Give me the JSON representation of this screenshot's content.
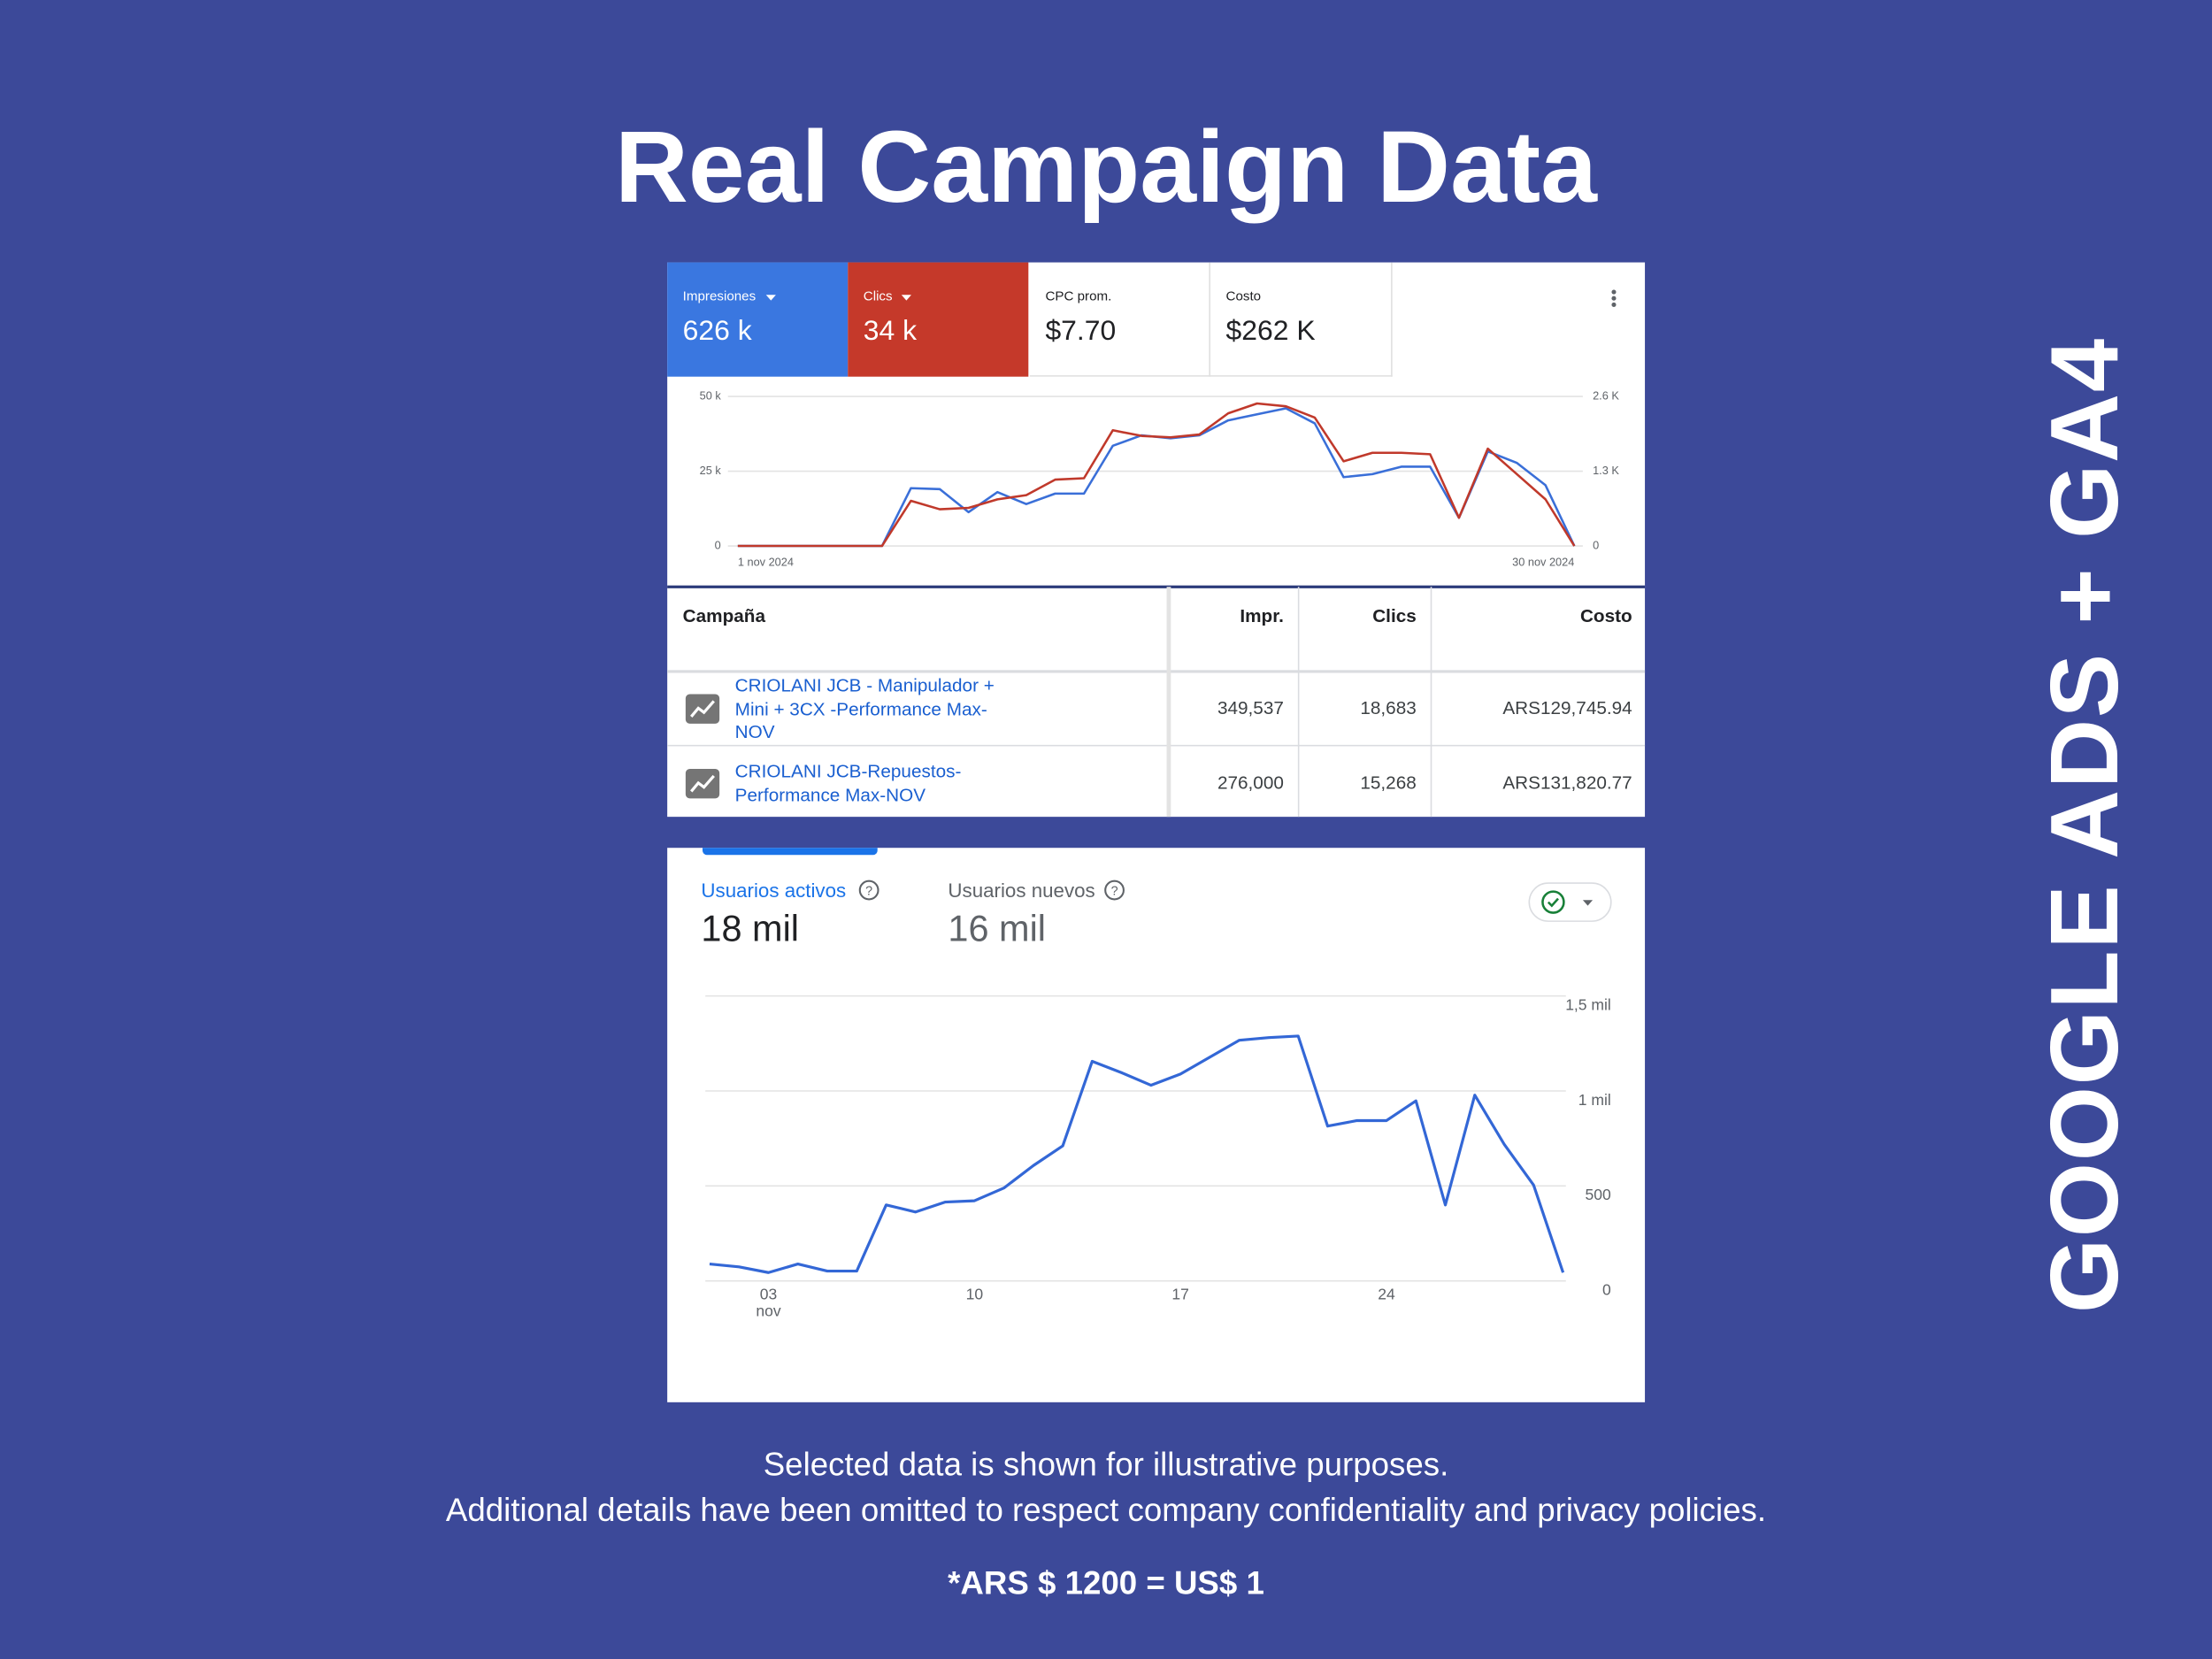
{
  "slide": {
    "title": "Real Campaign Data",
    "side_label": "GOOGLE ADS + GA4",
    "footer": [
      "Selected data is shown for illustrative purposes.",
      "Additional details have been omitted to respect company confidentiality and privacy policies.",
      "*ARS $ 1200 = US$ 1"
    ]
  },
  "google_ads": {
    "metrics": [
      {
        "label": "Impresiones",
        "value": "626 k"
      },
      {
        "label": "Clics",
        "value": "34 k"
      },
      {
        "label": "CPC prom.",
        "value": "$7.70"
      },
      {
        "label": "Costo",
        "value": "$262 K"
      }
    ],
    "chart": {
      "type": "line",
      "grid": true,
      "categories": [
        "1 nov 2024",
        null,
        null,
        null,
        null,
        null,
        null,
        null,
        null,
        null,
        null,
        null,
        null,
        null,
        null,
        null,
        null,
        null,
        null,
        null,
        null,
        null,
        null,
        null,
        null,
        null,
        null,
        null,
        null,
        "30 nov 2024"
      ],
      "series": [
        {
          "color": "#3a6fd8",
          "values": [
            0,
            0,
            0,
            0,
            0,
            0,
            19300,
            19000,
            11300,
            18000,
            14000,
            17500,
            17500,
            33500,
            37000,
            36000,
            37000,
            42000,
            44000,
            46000,
            41000,
            23000,
            24000,
            26500,
            26500,
            9400,
            31600,
            27800,
            20300,
            0
          ]
        },
        {
          "color": "#c0392b",
          "axis": "y2",
          "values": [
            0,
            0,
            0,
            0,
            0,
            0,
            785,
            638,
            662,
            810,
            883,
            1153,
            1177,
            2011,
            1913,
            1889,
            1938,
            2306,
            2477,
            2428,
            2232,
            1472,
            1619,
            1619,
            1594,
            490,
            1692,
            1251,
            810,
            0
          ]
        }
      ],
      "ylim": [
        0,
        50000
      ],
      "yticks": [
        0,
        {
          "value": 25000,
          "label": "25 k"
        },
        {
          "value": 50000,
          "label": "50 k"
        }
      ],
      "y2lim": [
        0,
        2600
      ],
      "y2ticks": [
        0,
        {
          "value": 1300,
          "label": "1.3 K"
        },
        {
          "value": 2600,
          "label": "2.6 K"
        }
      ]
    },
    "table": {
      "header": [
        "Campaña",
        "Impr.",
        "Clics",
        "Costo"
      ],
      "rows": [
        [
          "CRIOLANI JCB - Manipulador + Mini + 3CX -Performance Max-NOV",
          "349,537",
          "18,683",
          "ARS129,745.94"
        ],
        [
          "CRIOLANI JCB-Repuestos-Performance Max-NOV",
          "276,000",
          "15,268",
          "ARS131,820.77"
        ]
      ]
    }
  },
  "ga4": {
    "metrics": [
      {
        "label": "Usuarios activos",
        "value": "18 mil"
      },
      {
        "label": "Usuarios nuevos",
        "value": "16 mil"
      }
    ],
    "chart": {
      "type": "line",
      "grid": true,
      "categories": [
        null,
        null,
        "03",
        null,
        null,
        null,
        null,
        null,
        null,
        "10",
        null,
        null,
        null,
        null,
        null,
        null,
        "17",
        null,
        null,
        null,
        null,
        null,
        null,
        "24",
        null,
        null,
        null,
        null,
        null,
        null
      ],
      "x_sublabel": "nov",
      "series": [
        {
          "color": "#3367d6",
          "values": [
            89,
            74,
            44,
            89,
            52,
            52,
            400,
            363,
            415,
            422,
            489,
            607,
            711,
            1156,
            1096,
            1030,
            1089,
            1178,
            1267,
            1281,
            1289,
            815,
            844,
            844,
            948,
            400,
            978,
            719,
            504,
            44
          ]
        }
      ],
      "ylim": [
        0,
        1500
      ],
      "yticks": [
        0,
        500,
        {
          "value": 1000,
          "label": "1 mil"
        },
        {
          "value": 1500,
          "label": "1,5 mil"
        }
      ]
    }
  }
}
